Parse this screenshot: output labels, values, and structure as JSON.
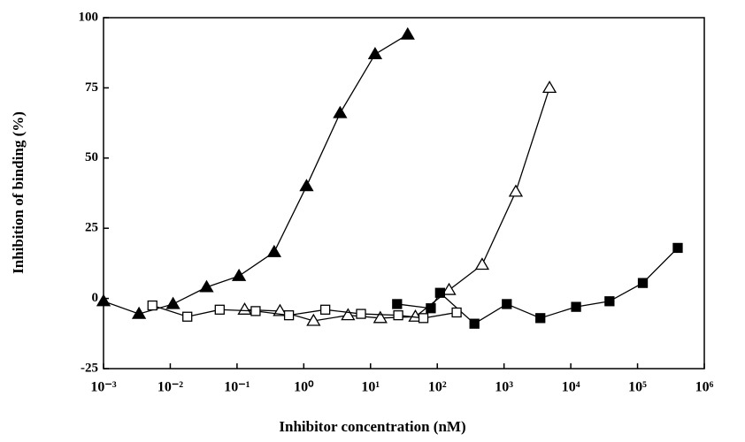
{
  "chart_data": {
    "type": "line",
    "xlabel": "Inhibitor concentration (nM)",
    "ylabel": "Inhibition of binding (%)",
    "xscale": "log",
    "xlim": [
      0.001,
      1000000
    ],
    "xticks": [
      {
        "value": 0.001,
        "label": "10⁻³"
      },
      {
        "value": 0.01,
        "label": "10⁻²"
      },
      {
        "value": 0.1,
        "label": "10⁻¹"
      },
      {
        "value": 1,
        "label": "10⁰"
      },
      {
        "value": 10,
        "label": "10¹"
      },
      {
        "value": 100,
        "label": "10²"
      },
      {
        "value": 1000,
        "label": "10³"
      },
      {
        "value": 10000,
        "label": "10⁴"
      },
      {
        "value": 100000,
        "label": "10⁵"
      },
      {
        "value": 1000000,
        "label": "10⁶"
      }
    ],
    "ylim": [
      -25,
      100
    ],
    "yticks": [
      100,
      75,
      50,
      25,
      0,
      -25
    ],
    "series": [
      {
        "marker": "triangle",
        "filled": true,
        "color": "#000000",
        "x": [
          0.001,
          0.0034,
          0.011,
          0.035,
          0.107,
          0.36,
          1.1,
          3.5,
          11.7,
          36
        ],
        "values": [
          -1,
          -5.5,
          -2,
          4,
          8,
          16.5,
          40,
          66,
          87,
          94
        ]
      },
      {
        "marker": "triangle",
        "filled": false,
        "color": "#000000",
        "x": [
          0.13,
          0.44,
          1.4,
          4.6,
          14,
          47,
          150,
          470,
          1500,
          4800
        ],
        "values": [
          -4,
          -4.5,
          -8,
          -6,
          -7,
          -6.5,
          3,
          12,
          38,
          75
        ]
      },
      {
        "marker": "square",
        "filled": true,
        "color": "#000000",
        "x": [
          25,
          80,
          110,
          360,
          1100,
          3500,
          12000,
          38000,
          120000,
          400000
        ],
        "values": [
          -2,
          -3.5,
          2,
          -9,
          -2,
          -7,
          -3,
          -1,
          5.5,
          18
        ]
      },
      {
        "marker": "square",
        "filled": false,
        "color": "#000000",
        "x": [
          0.0054,
          0.018,
          0.055,
          0.19,
          0.6,
          2.1,
          7.2,
          26,
          62,
          195
        ],
        "values": [
          -2.5,
          -6.5,
          -4,
          -4.5,
          -6,
          -4,
          -5.5,
          -6,
          -7,
          -5
        ]
      }
    ]
  }
}
